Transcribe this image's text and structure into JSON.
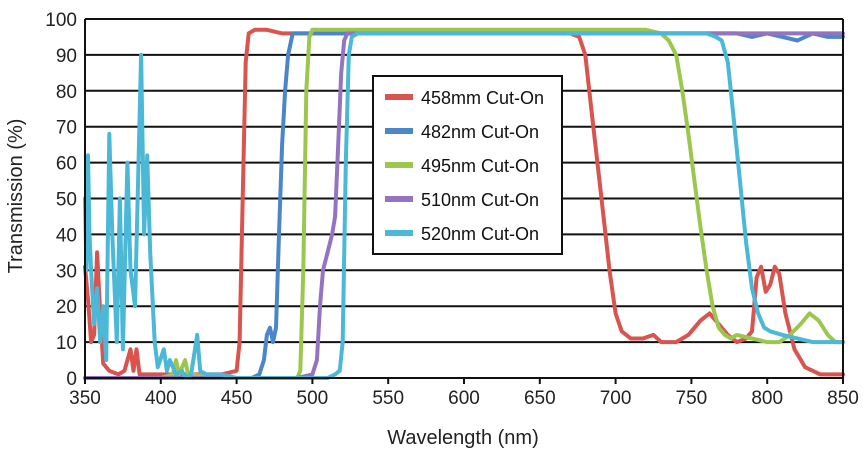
{
  "chart_data": {
    "type": "line",
    "title": "",
    "xlabel": "Wavelength (nm)",
    "ylabel": "Transmission (%)",
    "xlim": [
      350,
      850
    ],
    "ylim": [
      0,
      100
    ],
    "xticks": [
      350,
      400,
      450,
      500,
      550,
      600,
      650,
      700,
      750,
      800,
      850
    ],
    "yticks": [
      0,
      10,
      20,
      30,
      40,
      50,
      60,
      70,
      80,
      90,
      100
    ],
    "grid": "horizontal",
    "legend_position": "center",
    "series": [
      {
        "name": "458mm Cut-On",
        "color": "#d9534f",
        "points": [
          [
            350,
            31
          ],
          [
            352,
            22
          ],
          [
            354,
            10
          ],
          [
            356,
            12
          ],
          [
            358,
            35
          ],
          [
            360,
            18
          ],
          [
            362,
            4
          ],
          [
            366,
            2
          ],
          [
            372,
            1
          ],
          [
            376,
            2
          ],
          [
            380,
            8
          ],
          [
            382,
            2
          ],
          [
            384,
            8
          ],
          [
            386,
            1
          ],
          [
            392,
            1
          ],
          [
            400,
            1
          ],
          [
            420,
            1
          ],
          [
            440,
            1
          ],
          [
            450,
            2
          ],
          [
            452,
            10
          ],
          [
            454,
            50
          ],
          [
            456,
            88
          ],
          [
            458,
            96
          ],
          [
            462,
            97
          ],
          [
            470,
            97
          ],
          [
            480,
            96
          ],
          [
            490,
            96
          ],
          [
            500,
            96
          ],
          [
            520,
            96
          ],
          [
            540,
            96
          ],
          [
            560,
            96
          ],
          [
            580,
            96
          ],
          [
            600,
            96
          ],
          [
            620,
            96
          ],
          [
            640,
            96
          ],
          [
            660,
            96
          ],
          [
            670,
            96
          ],
          [
            676,
            95
          ],
          [
            680,
            90
          ],
          [
            684,
            75
          ],
          [
            688,
            60
          ],
          [
            692,
            45
          ],
          [
            696,
            30
          ],
          [
            700,
            18
          ],
          [
            704,
            13
          ],
          [
            710,
            11
          ],
          [
            718,
            11
          ],
          [
            725,
            12
          ],
          [
            730,
            10
          ],
          [
            740,
            10
          ],
          [
            748,
            12
          ],
          [
            756,
            16
          ],
          [
            762,
            18
          ],
          [
            768,
            15
          ],
          [
            774,
            12
          ],
          [
            780,
            10
          ],
          [
            786,
            11
          ],
          [
            790,
            13
          ],
          [
            793,
            28
          ],
          [
            796,
            31
          ],
          [
            799,
            24
          ],
          [
            802,
            26
          ],
          [
            805,
            31
          ],
          [
            808,
            29
          ],
          [
            812,
            18
          ],
          [
            818,
            8
          ],
          [
            825,
            3
          ],
          [
            835,
            1
          ],
          [
            850,
            1
          ]
        ]
      },
      {
        "name": "482nm Cut-On",
        "color": "#4a86c8",
        "points": [
          [
            350,
            0
          ],
          [
            400,
            0
          ],
          [
            450,
            0
          ],
          [
            460,
            0
          ],
          [
            465,
            1
          ],
          [
            468,
            5
          ],
          [
            470,
            12
          ],
          [
            472,
            14
          ],
          [
            474,
            10
          ],
          [
            476,
            14
          ],
          [
            478,
            40
          ],
          [
            480,
            65
          ],
          [
            482,
            80
          ],
          [
            484,
            90
          ],
          [
            487,
            96
          ],
          [
            490,
            96
          ],
          [
            500,
            96
          ],
          [
            520,
            96
          ],
          [
            540,
            96
          ],
          [
            560,
            96
          ],
          [
            580,
            96
          ],
          [
            600,
            96
          ],
          [
            620,
            96
          ],
          [
            640,
            96
          ],
          [
            660,
            96
          ],
          [
            680,
            96
          ],
          [
            700,
            96
          ],
          [
            720,
            96
          ],
          [
            740,
            96
          ],
          [
            760,
            96
          ],
          [
            780,
            96
          ],
          [
            790,
            95
          ],
          [
            800,
            96
          ],
          [
            810,
            95
          ],
          [
            820,
            94
          ],
          [
            830,
            96
          ],
          [
            840,
            95
          ],
          [
            850,
            95
          ]
        ]
      },
      {
        "name": "495nm Cut-On",
        "color": "#9cc74f",
        "points": [
          [
            350,
            0
          ],
          [
            400,
            0
          ],
          [
            408,
            1
          ],
          [
            410,
            5
          ],
          [
            412,
            1
          ],
          [
            416,
            5
          ],
          [
            418,
            1
          ],
          [
            420,
            1
          ],
          [
            440,
            0
          ],
          [
            480,
            0
          ],
          [
            490,
            0
          ],
          [
            492,
            2
          ],
          [
            494,
            30
          ],
          [
            496,
            80
          ],
          [
            498,
            95
          ],
          [
            500,
            97
          ],
          [
            510,
            97
          ],
          [
            520,
            97
          ],
          [
            540,
            97
          ],
          [
            560,
            97
          ],
          [
            580,
            97
          ],
          [
            600,
            97
          ],
          [
            620,
            97
          ],
          [
            640,
            97
          ],
          [
            660,
            97
          ],
          [
            680,
            97
          ],
          [
            700,
            97
          ],
          [
            720,
            97
          ],
          [
            730,
            96
          ],
          [
            735,
            94
          ],
          [
            740,
            90
          ],
          [
            744,
            80
          ],
          [
            748,
            68
          ],
          [
            752,
            55
          ],
          [
            756,
            42
          ],
          [
            760,
            30
          ],
          [
            764,
            20
          ],
          [
            768,
            14
          ],
          [
            772,
            12
          ],
          [
            776,
            11
          ],
          [
            780,
            12
          ],
          [
            790,
            11
          ],
          [
            800,
            10
          ],
          [
            808,
            10
          ],
          [
            815,
            12
          ],
          [
            822,
            15
          ],
          [
            828,
            18
          ],
          [
            834,
            16
          ],
          [
            840,
            12
          ],
          [
            845,
            10
          ],
          [
            850,
            10
          ]
        ]
      },
      {
        "name": "510nm Cut-On",
        "color": "#9474c0",
        "points": [
          [
            350,
            0
          ],
          [
            400,
            0
          ],
          [
            450,
            0
          ],
          [
            490,
            0
          ],
          [
            500,
            1
          ],
          [
            503,
            5
          ],
          [
            505,
            20
          ],
          [
            507,
            30
          ],
          [
            510,
            35
          ],
          [
            513,
            40
          ],
          [
            515,
            45
          ],
          [
            517,
            65
          ],
          [
            519,
            85
          ],
          [
            521,
            94
          ],
          [
            523,
            96
          ],
          [
            530,
            96
          ],
          [
            550,
            96
          ],
          [
            580,
            96
          ],
          [
            600,
            96
          ],
          [
            620,
            96
          ],
          [
            640,
            96
          ],
          [
            660,
            96
          ],
          [
            680,
            96
          ],
          [
            700,
            96
          ],
          [
            720,
            96
          ],
          [
            740,
            96
          ],
          [
            760,
            96
          ],
          [
            780,
            96
          ],
          [
            800,
            96
          ],
          [
            820,
            96
          ],
          [
            840,
            96
          ],
          [
            850,
            96
          ]
        ]
      },
      {
        "name": "520nm Cut-On",
        "color": "#4ab8d6",
        "points": [
          [
            350,
            50
          ],
          [
            351,
            30
          ],
          [
            352,
            62
          ],
          [
            353,
            40
          ],
          [
            354,
            30
          ],
          [
            356,
            15
          ],
          [
            358,
            25
          ],
          [
            360,
            10
          ],
          [
            362,
            20
          ],
          [
            364,
            5
          ],
          [
            366,
            68
          ],
          [
            368,
            40
          ],
          [
            369,
            30
          ],
          [
            371,
            10
          ],
          [
            373,
            50
          ],
          [
            375,
            8
          ],
          [
            378,
            60
          ],
          [
            380,
            30
          ],
          [
            383,
            20
          ],
          [
            385,
            55
          ],
          [
            387,
            90
          ],
          [
            389,
            40
          ],
          [
            391,
            62
          ],
          [
            393,
            35
          ],
          [
            396,
            10
          ],
          [
            398,
            3
          ],
          [
            402,
            8
          ],
          [
            404,
            2
          ],
          [
            406,
            5
          ],
          [
            410,
            1
          ],
          [
            414,
            2
          ],
          [
            416,
            0
          ],
          [
            420,
            1
          ],
          [
            424,
            12
          ],
          [
            426,
            2
          ],
          [
            430,
            1
          ],
          [
            440,
            1
          ],
          [
            450,
            0
          ],
          [
            460,
            0
          ],
          [
            480,
            0
          ],
          [
            500,
            0
          ],
          [
            510,
            0
          ],
          [
            515,
            1
          ],
          [
            518,
            2
          ],
          [
            520,
            10
          ],
          [
            522,
            60
          ],
          [
            524,
            90
          ],
          [
            526,
            95
          ],
          [
            530,
            96
          ],
          [
            550,
            96
          ],
          [
            580,
            96
          ],
          [
            600,
            96
          ],
          [
            620,
            96
          ],
          [
            640,
            96
          ],
          [
            660,
            96
          ],
          [
            680,
            96
          ],
          [
            700,
            96
          ],
          [
            720,
            96
          ],
          [
            740,
            96
          ],
          [
            760,
            96
          ],
          [
            766,
            95
          ],
          [
            770,
            94
          ],
          [
            774,
            88
          ],
          [
            778,
            72
          ],
          [
            782,
            55
          ],
          [
            786,
            38
          ],
          [
            790,
            25
          ],
          [
            794,
            18
          ],
          [
            798,
            14
          ],
          [
            802,
            13
          ],
          [
            810,
            12
          ],
          [
            820,
            11
          ],
          [
            830,
            10
          ],
          [
            840,
            10
          ],
          [
            850,
            10
          ]
        ]
      }
    ]
  }
}
